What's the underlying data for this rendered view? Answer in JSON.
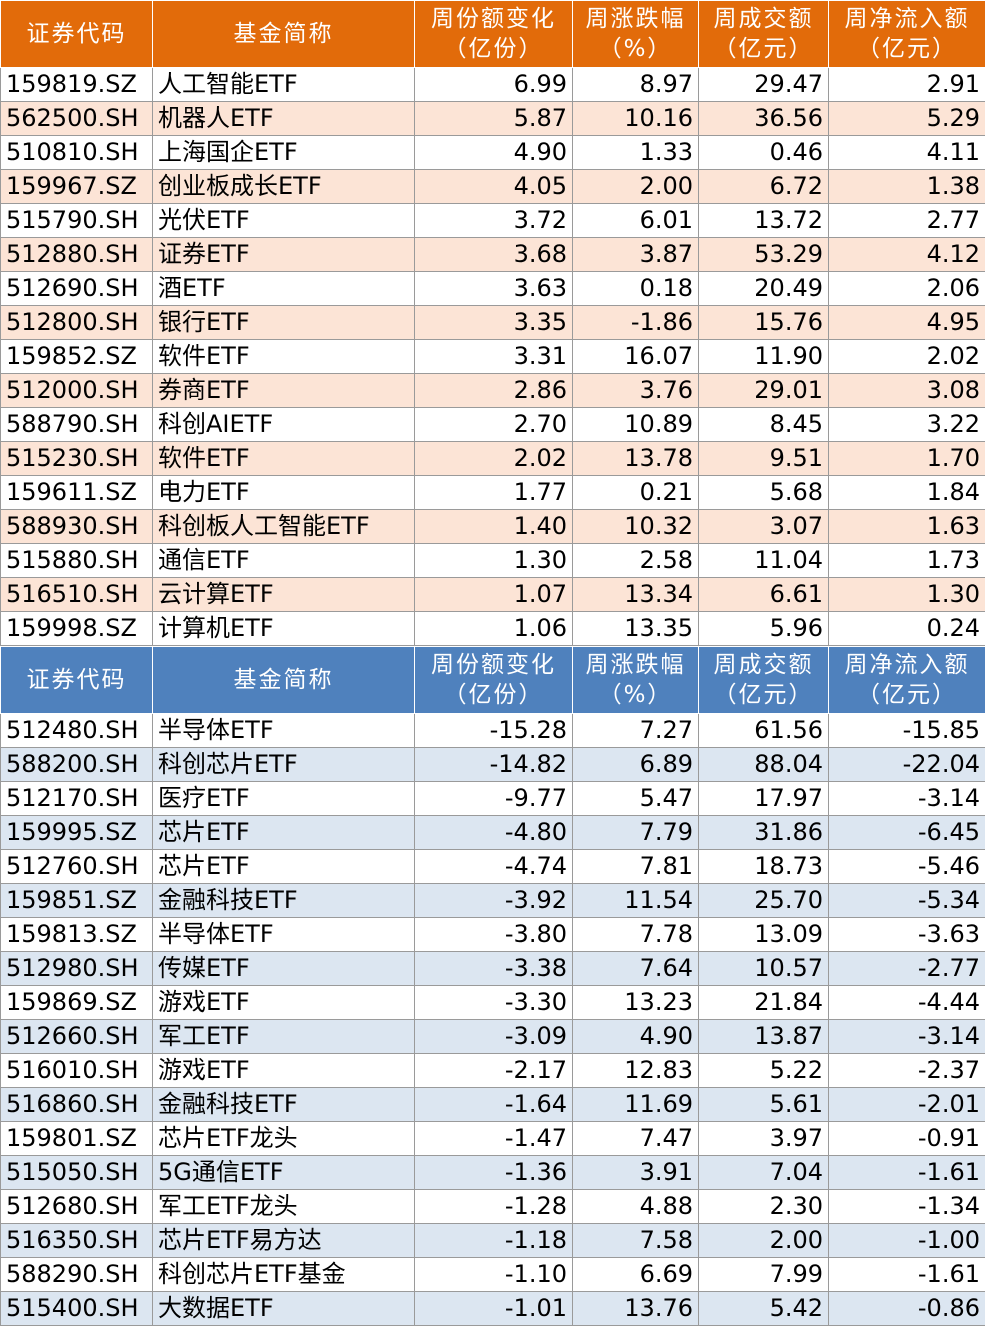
{
  "headers": [
    "证券代码",
    "基金简称",
    "周份额变化\n（亿份）",
    "周涨跌幅\n（%）",
    "周成交额\n（亿元）",
    "周净流入额\n（亿元）"
  ],
  "colors": {
    "inflow_header": "#e26b0a",
    "inflow_band": "#fce4d6",
    "outflow_header": "#4f81bd",
    "outflow_band": "#dce6f1"
  },
  "inflow_rows": [
    [
      "159819.SZ",
      "人工智能ETF",
      "6.99",
      "8.97",
      "29.47",
      "2.91"
    ],
    [
      "562500.SH",
      "机器人ETF",
      "5.87",
      "10.16",
      "36.56",
      "5.29"
    ],
    [
      "510810.SH",
      "上海国企ETF",
      "4.90",
      "1.33",
      "0.46",
      "4.11"
    ],
    [
      "159967.SZ",
      "创业板成长ETF",
      "4.05",
      "2.00",
      "6.72",
      "1.38"
    ],
    [
      "515790.SH",
      "光伏ETF",
      "3.72",
      "6.01",
      "13.72",
      "2.77"
    ],
    [
      "512880.SH",
      "证券ETF",
      "3.68",
      "3.87",
      "53.29",
      "4.12"
    ],
    [
      "512690.SH",
      "酒ETF",
      "3.63",
      "0.18",
      "20.49",
      "2.06"
    ],
    [
      "512800.SH",
      "银行ETF",
      "3.35",
      "-1.86",
      "15.76",
      "4.95"
    ],
    [
      "159852.SZ",
      "软件ETF",
      "3.31",
      "16.07",
      "11.90",
      "2.02"
    ],
    [
      "512000.SH",
      "券商ETF",
      "2.86",
      "3.76",
      "29.01",
      "3.08"
    ],
    [
      "588790.SH",
      "科创AIETF",
      "2.70",
      "10.89",
      "8.45",
      "3.22"
    ],
    [
      "515230.SH",
      "软件ETF",
      "2.02",
      "13.78",
      "9.51",
      "1.70"
    ],
    [
      "159611.SZ",
      "电力ETF",
      "1.77",
      "0.21",
      "5.68",
      "1.84"
    ],
    [
      "588930.SH",
      "科创板人工智能ETF",
      "1.40",
      "10.32",
      "3.07",
      "1.63"
    ],
    [
      "515880.SH",
      "通信ETF",
      "1.30",
      "2.58",
      "11.04",
      "1.73"
    ],
    [
      "516510.SH",
      "云计算ETF",
      "1.07",
      "13.34",
      "6.61",
      "1.30"
    ],
    [
      "159998.SZ",
      "计算机ETF",
      "1.06",
      "13.35",
      "5.96",
      "0.24"
    ]
  ],
  "outflow_rows": [
    [
      "512480.SH",
      "半导体ETF",
      "-15.28",
      "7.27",
      "61.56",
      "-15.85"
    ],
    [
      "588200.SH",
      "科创芯片ETF",
      "-14.82",
      "6.89",
      "88.04",
      "-22.04"
    ],
    [
      "512170.SH",
      "医疗ETF",
      "-9.77",
      "5.47",
      "17.97",
      "-3.14"
    ],
    [
      "159995.SZ",
      "芯片ETF",
      "-4.80",
      "7.79",
      "31.86",
      "-6.45"
    ],
    [
      "512760.SH",
      "芯片ETF",
      "-4.74",
      "7.81",
      "18.73",
      "-5.46"
    ],
    [
      "159851.SZ",
      "金融科技ETF",
      "-3.92",
      "11.54",
      "25.70",
      "-5.34"
    ],
    [
      "159813.SZ",
      "半导体ETF",
      "-3.80",
      "7.78",
      "13.09",
      "-3.63"
    ],
    [
      "512980.SH",
      "传媒ETF",
      "-3.38",
      "7.64",
      "10.57",
      "-2.77"
    ],
    [
      "159869.SZ",
      "游戏ETF",
      "-3.30",
      "13.23",
      "21.84",
      "-4.44"
    ],
    [
      "512660.SH",
      "军工ETF",
      "-3.09",
      "4.90",
      "13.87",
      "-3.14"
    ],
    [
      "516010.SH",
      "游戏ETF",
      "-2.17",
      "12.83",
      "5.22",
      "-2.37"
    ],
    [
      "516860.SH",
      "金融科技ETF",
      "-1.64",
      "11.69",
      "5.61",
      "-2.01"
    ],
    [
      "159801.SZ",
      "芯片ETF龙头",
      "-1.47",
      "7.47",
      "3.97",
      "-0.91"
    ],
    [
      "515050.SH",
      "5G通信ETF",
      "-1.36",
      "3.91",
      "7.04",
      "-1.61"
    ],
    [
      "512680.SH",
      "军工ETF龙头",
      "-1.28",
      "4.88",
      "2.30",
      "-1.34"
    ],
    [
      "516350.SH",
      "芯片ETF易方达",
      "-1.18",
      "7.58",
      "2.00",
      "-1.00"
    ],
    [
      "588290.SH",
      "科创芯片ETF基金",
      "-1.10",
      "6.69",
      "7.99",
      "-1.61"
    ],
    [
      "515400.SH",
      "大数据ETF",
      "-1.01",
      "13.76",
      "5.42",
      "-0.86"
    ]
  ]
}
